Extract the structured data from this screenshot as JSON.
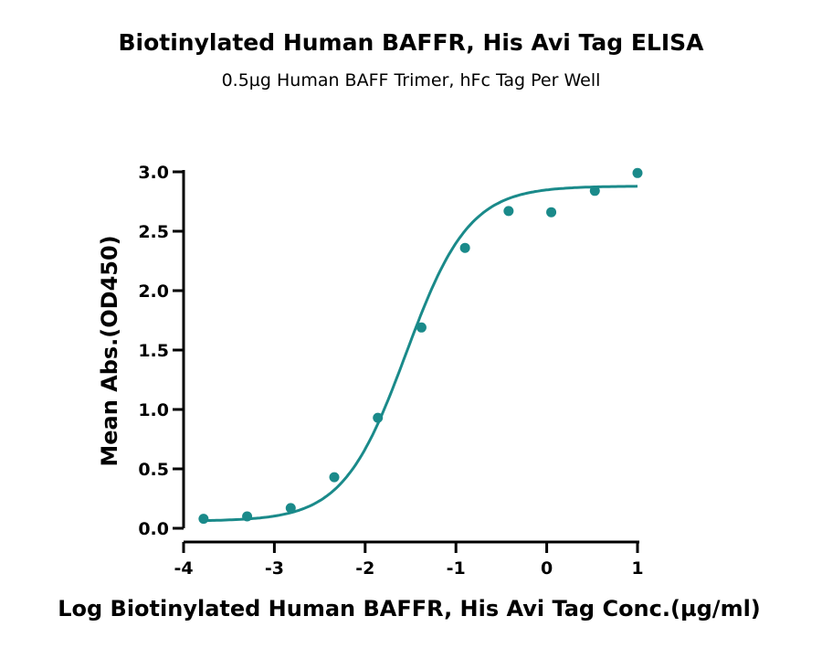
{
  "chart_data": {
    "type": "scatter",
    "title": "Biotinylated Human BAFFR, His Avi Tag ELISA",
    "subtitle": "0.5µg Human BAFF Trimer, hFc Tag Per Well",
    "xlabel": "Log Biotinylated Human BAFFR, His Avi Tag Conc.(µg/ml)",
    "ylabel": "Mean Abs.(OD450)",
    "xlim": [
      -4,
      1
    ],
    "ylim": [
      0,
      3.0
    ],
    "x_ticks": [
      "-4",
      "-3",
      "-2",
      "-1",
      "0",
      "1"
    ],
    "y_ticks": [
      "0.0",
      "0.5",
      "1.0",
      "1.5",
      "2.0",
      "2.5",
      "3.0"
    ],
    "grid": false,
    "color": "#1a8a8a",
    "series": [
      {
        "points": [
          {
            "x": -3.78,
            "y": 0.08
          },
          {
            "x": -3.3,
            "y": 0.1
          },
          {
            "x": -2.82,
            "y": 0.17
          },
          {
            "x": -2.34,
            "y": 0.43
          },
          {
            "x": -1.86,
            "y": 0.93
          },
          {
            "x": -1.38,
            "y": 1.69
          },
          {
            "x": -0.9,
            "y": 2.36
          },
          {
            "x": -0.42,
            "y": 2.67
          },
          {
            "x": 0.05,
            "y": 2.66
          },
          {
            "x": 0.53,
            "y": 2.84
          },
          {
            "x": 1.0,
            "y": 2.99
          }
        ]
      }
    ],
    "fit": {
      "model": "4PL",
      "bottom": 0.06,
      "top": 2.88,
      "log_ec50": -1.55,
      "hill": 1.25
    }
  }
}
